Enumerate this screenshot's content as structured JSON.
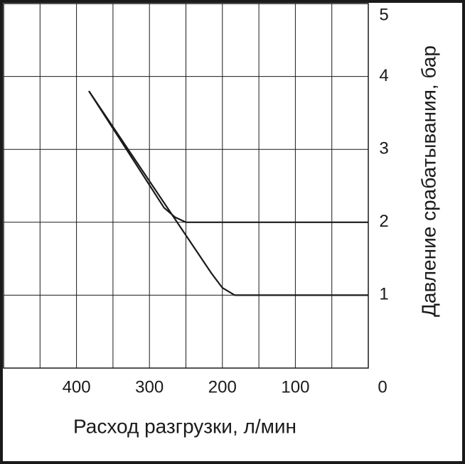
{
  "chart_data": {
    "type": "line",
    "x_label": "Расход разгрузки, л/мин",
    "y_label": "Давление срабатывания, бар",
    "xlim": [
      500,
      0
    ],
    "xticks": [
      400,
      300,
      200,
      100,
      0
    ],
    "x_minor_grid": [
      450,
      350,
      250,
      150,
      50
    ],
    "ylim": [
      0,
      5
    ],
    "yticks": [
      0,
      1,
      2,
      3,
      4,
      5
    ],
    "grid": true,
    "y_axis_side": "right",
    "series": [
      {
        "color": "#1a1a1a",
        "x": [
          383,
          280,
          265,
          250,
          0
        ],
        "values": [
          3.8,
          2.2,
          2.07,
          2.0,
          2.0
        ]
      },
      {
        "color": "#1a1a1a",
        "x": [
          383,
          215,
          200,
          183,
          0
        ],
        "values": [
          3.8,
          1.3,
          1.1,
          1.0,
          1.0
        ]
      }
    ]
  }
}
